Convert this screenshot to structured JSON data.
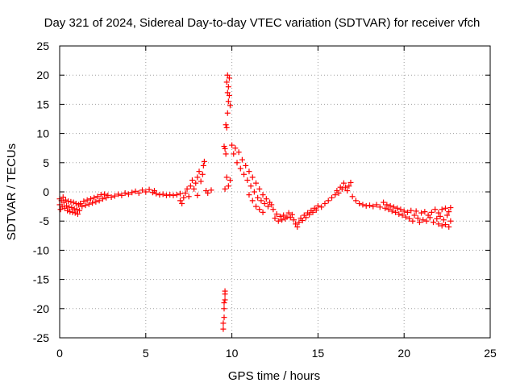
{
  "chart_data": {
    "type": "scatter",
    "title": "Day 321 of 2024, Sidereal Day-to-day VTEC variation (SDTVAR) for receiver vfch",
    "xlabel": "GPS time / hours",
    "ylabel": "SDTVAR / TECUs",
    "xlim": [
      0,
      25
    ],
    "ylim": [
      -25,
      25
    ],
    "xticks": [
      0,
      5,
      10,
      15,
      20,
      25
    ],
    "yticks": [
      25,
      20,
      15,
      10,
      5,
      0,
      -5,
      -10,
      -15,
      -20,
      -25
    ],
    "grid": true,
    "marker": "+",
    "color": "#ff0000",
    "series": [
      {
        "name": "SDTVAR",
        "points": [
          [
            0.0,
            -1.2
          ],
          [
            0.0,
            -2.2
          ],
          [
            0.05,
            -3.0
          ],
          [
            0.1,
            -1.5
          ],
          [
            0.15,
            -2.5
          ],
          [
            0.2,
            -0.9
          ],
          [
            0.25,
            -1.8
          ],
          [
            0.3,
            -2.8
          ],
          [
            0.35,
            -1.4
          ],
          [
            0.4,
            -2.4
          ],
          [
            0.45,
            -3.2
          ],
          [
            0.5,
            -1.6
          ],
          [
            0.55,
            -2.6
          ],
          [
            0.6,
            -3.4
          ],
          [
            0.65,
            -1.7
          ],
          [
            0.7,
            -2.7
          ],
          [
            0.75,
            -3.5
          ],
          [
            0.8,
            -1.8
          ],
          [
            0.85,
            -2.9
          ],
          [
            0.9,
            -3.6
          ],
          [
            0.95,
            -2.0
          ],
          [
            1.0,
            -3.0
          ],
          [
            1.05,
            -3.8
          ],
          [
            1.1,
            -2.2
          ],
          [
            1.15,
            -3.2
          ],
          [
            1.2,
            -2.0
          ],
          [
            1.3,
            -2.5
          ],
          [
            1.4,
            -1.6
          ],
          [
            1.5,
            -2.3
          ],
          [
            1.6,
            -1.4
          ],
          [
            1.7,
            -2.1
          ],
          [
            1.8,
            -1.2
          ],
          [
            1.9,
            -1.9
          ],
          [
            2.0,
            -1.0
          ],
          [
            2.1,
            -1.7
          ],
          [
            2.2,
            -0.8
          ],
          [
            2.3,
            -1.5
          ],
          [
            2.4,
            -0.5
          ],
          [
            2.5,
            -1.2
          ],
          [
            2.6,
            -0.4
          ],
          [
            2.7,
            -1.0
          ],
          [
            2.8,
            -0.6
          ],
          [
            3.0,
            -0.9
          ],
          [
            3.2,
            -0.7
          ],
          [
            3.4,
            -0.4
          ],
          [
            3.6,
            -0.6
          ],
          [
            3.8,
            -0.2
          ],
          [
            4.0,
            -0.4
          ],
          [
            4.2,
            -0.1
          ],
          [
            4.4,
            0.1
          ],
          [
            4.6,
            -0.2
          ],
          [
            4.8,
            0.3
          ],
          [
            5.0,
            0.0
          ],
          [
            5.2,
            0.4
          ],
          [
            5.4,
            -0.1
          ],
          [
            5.5,
            0.2
          ],
          [
            5.6,
            -0.3
          ],
          [
            5.8,
            -0.5
          ],
          [
            6.0,
            -0.4
          ],
          [
            6.2,
            -0.6
          ],
          [
            6.4,
            -0.5
          ],
          [
            6.6,
            -0.6
          ],
          [
            6.8,
            -0.5
          ],
          [
            7.0,
            -0.3
          ],
          [
            7.0,
            -1.5
          ],
          [
            7.1,
            -2.0
          ],
          [
            7.2,
            -1.0
          ],
          [
            7.3,
            -0.2
          ],
          [
            7.4,
            0.5
          ],
          [
            7.5,
            -0.8
          ],
          [
            7.6,
            1.0
          ],
          [
            7.7,
            2.0
          ],
          [
            7.8,
            0.5
          ],
          [
            7.9,
            1.5
          ],
          [
            8.0,
            2.5
          ],
          [
            8.0,
            -0.6
          ],
          [
            8.1,
            3.5
          ],
          [
            8.2,
            1.8
          ],
          [
            8.3,
            3.0
          ],
          [
            8.35,
            4.5
          ],
          [
            8.4,
            5.2
          ],
          [
            8.5,
            0.2
          ],
          [
            8.6,
            -0.2
          ],
          [
            8.8,
            0.3
          ],
          [
            9.55,
            7.8
          ],
          [
            9.6,
            7.4
          ],
          [
            9.65,
            11.5
          ],
          [
            9.7,
            11.0
          ],
          [
            9.75,
            13.5
          ],
          [
            9.75,
            17.0
          ],
          [
            9.8,
            15.5
          ],
          [
            9.8,
            18.0
          ],
          [
            9.85,
            19.5
          ],
          [
            9.85,
            16.5
          ],
          [
            9.9,
            14.8
          ],
          [
            9.75,
            20.0
          ],
          [
            9.7,
            18.8
          ],
          [
            9.8,
            1.0
          ],
          [
            9.9,
            2.0
          ],
          [
            9.7,
            2.5
          ],
          [
            9.6,
            0.5
          ],
          [
            9.65,
            6.5
          ],
          [
            9.6,
            -17.0
          ],
          [
            9.6,
            -18.5
          ],
          [
            9.55,
            -20.0
          ],
          [
            9.55,
            -21.5
          ],
          [
            9.5,
            -22.5
          ],
          [
            9.5,
            -23.5
          ],
          [
            9.55,
            -19.0
          ],
          [
            9.6,
            -17.5
          ],
          [
            10.0,
            8.0
          ],
          [
            10.1,
            6.5
          ],
          [
            10.2,
            7.5
          ],
          [
            10.3,
            5.0
          ],
          [
            10.4,
            6.8
          ],
          [
            10.5,
            4.0
          ],
          [
            10.6,
            5.5
          ],
          [
            10.7,
            3.0
          ],
          [
            10.8,
            4.5
          ],
          [
            10.9,
            2.0
          ],
          [
            11.0,
            3.5
          ],
          [
            11.0,
            -0.5
          ],
          [
            11.1,
            1.0
          ],
          [
            11.2,
            2.5
          ],
          [
            11.2,
            -1.5
          ],
          [
            11.3,
            0.0
          ],
          [
            11.4,
            1.5
          ],
          [
            11.4,
            -2.5
          ],
          [
            11.5,
            -1.0
          ],
          [
            11.6,
            0.5
          ],
          [
            11.6,
            -3.0
          ],
          [
            11.7,
            -1.5
          ],
          [
            11.8,
            -0.5
          ],
          [
            11.8,
            -3.5
          ],
          [
            11.9,
            -2.0
          ],
          [
            12.0,
            -1.2
          ],
          [
            12.1,
            -2.5
          ],
          [
            12.2,
            -1.8
          ],
          [
            12.3,
            -2.2
          ],
          [
            12.4,
            -3.0
          ],
          [
            12.5,
            -4.5
          ],
          [
            12.6,
            -3.8
          ],
          [
            12.7,
            -5.0
          ],
          [
            12.8,
            -4.2
          ],
          [
            12.9,
            -4.8
          ],
          [
            13.0,
            -4.0
          ],
          [
            13.1,
            -4.6
          ],
          [
            13.2,
            -4.3
          ],
          [
            13.3,
            -3.6
          ],
          [
            13.4,
            -4.4
          ],
          [
            13.5,
            -3.9
          ],
          [
            13.6,
            -4.8
          ],
          [
            13.7,
            -5.5
          ],
          [
            13.8,
            -6.0
          ],
          [
            13.9,
            -5.2
          ],
          [
            14.0,
            -4.5
          ],
          [
            14.1,
            -4.9
          ],
          [
            14.2,
            -4.0
          ],
          [
            14.3,
            -4.4
          ],
          [
            14.4,
            -3.6
          ],
          [
            14.5,
            -3.9
          ],
          [
            14.6,
            -3.2
          ],
          [
            14.7,
            -3.5
          ],
          [
            14.8,
            -2.8
          ],
          [
            14.9,
            -3.1
          ],
          [
            15.0,
            -2.4
          ],
          [
            15.2,
            -2.6
          ],
          [
            15.4,
            -2.0
          ],
          [
            15.6,
            -1.5
          ],
          [
            15.8,
            -1.0
          ],
          [
            16.0,
            -0.5
          ],
          [
            16.1,
            0.2
          ],
          [
            16.2,
            -0.2
          ],
          [
            16.3,
            0.8
          ],
          [
            16.4,
            0.5
          ],
          [
            16.5,
            1.5
          ],
          [
            16.6,
            0.8
          ],
          [
            16.7,
            0.2
          ],
          [
            16.8,
            1.0
          ],
          [
            16.9,
            1.6
          ],
          [
            17.0,
            -0.8
          ],
          [
            17.2,
            -1.5
          ],
          [
            17.4,
            -2.0
          ],
          [
            17.6,
            -2.2
          ],
          [
            17.8,
            -2.4
          ],
          [
            18.0,
            -2.3
          ],
          [
            18.2,
            -2.5
          ],
          [
            18.4,
            -2.2
          ],
          [
            18.6,
            -2.6
          ],
          [
            18.8,
            -1.8
          ],
          [
            18.9,
            -2.8
          ],
          [
            19.0,
            -2.2
          ],
          [
            19.1,
            -3.0
          ],
          [
            19.2,
            -2.4
          ],
          [
            19.3,
            -3.3
          ],
          [
            19.4,
            -2.6
          ],
          [
            19.5,
            -3.5
          ],
          [
            19.6,
            -2.8
          ],
          [
            19.7,
            -3.8
          ],
          [
            19.8,
            -3.0
          ],
          [
            19.9,
            -4.0
          ],
          [
            20.0,
            -3.3
          ],
          [
            20.1,
            -4.3
          ],
          [
            20.2,
            -3.5
          ],
          [
            20.3,
            -4.6
          ],
          [
            20.4,
            -3.2
          ],
          [
            20.5,
            -5.0
          ],
          [
            20.6,
            -4.0
          ],
          [
            20.7,
            -3.3
          ],
          [
            20.8,
            -4.5
          ],
          [
            20.9,
            -5.2
          ],
          [
            21.0,
            -3.6
          ],
          [
            21.1,
            -4.8
          ],
          [
            21.2,
            -3.4
          ],
          [
            21.3,
            -5.0
          ],
          [
            21.4,
            -4.0
          ],
          [
            21.5,
            -4.4
          ],
          [
            21.6,
            -3.5
          ],
          [
            21.7,
            -5.2
          ],
          [
            21.8,
            -3.0
          ],
          [
            21.9,
            -4.6
          ],
          [
            22.0,
            -5.5
          ],
          [
            22.0,
            -3.6
          ],
          [
            22.1,
            -4.2
          ],
          [
            22.2,
            -5.8
          ],
          [
            22.2,
            -3.0
          ],
          [
            22.3,
            -4.8
          ],
          [
            22.4,
            -5.6
          ],
          [
            22.4,
            -2.8
          ],
          [
            22.5,
            -4.0
          ],
          [
            22.6,
            -6.0
          ],
          [
            22.6,
            -3.4
          ],
          [
            22.7,
            -5.0
          ],
          [
            22.7,
            -2.7
          ]
        ]
      }
    ]
  }
}
